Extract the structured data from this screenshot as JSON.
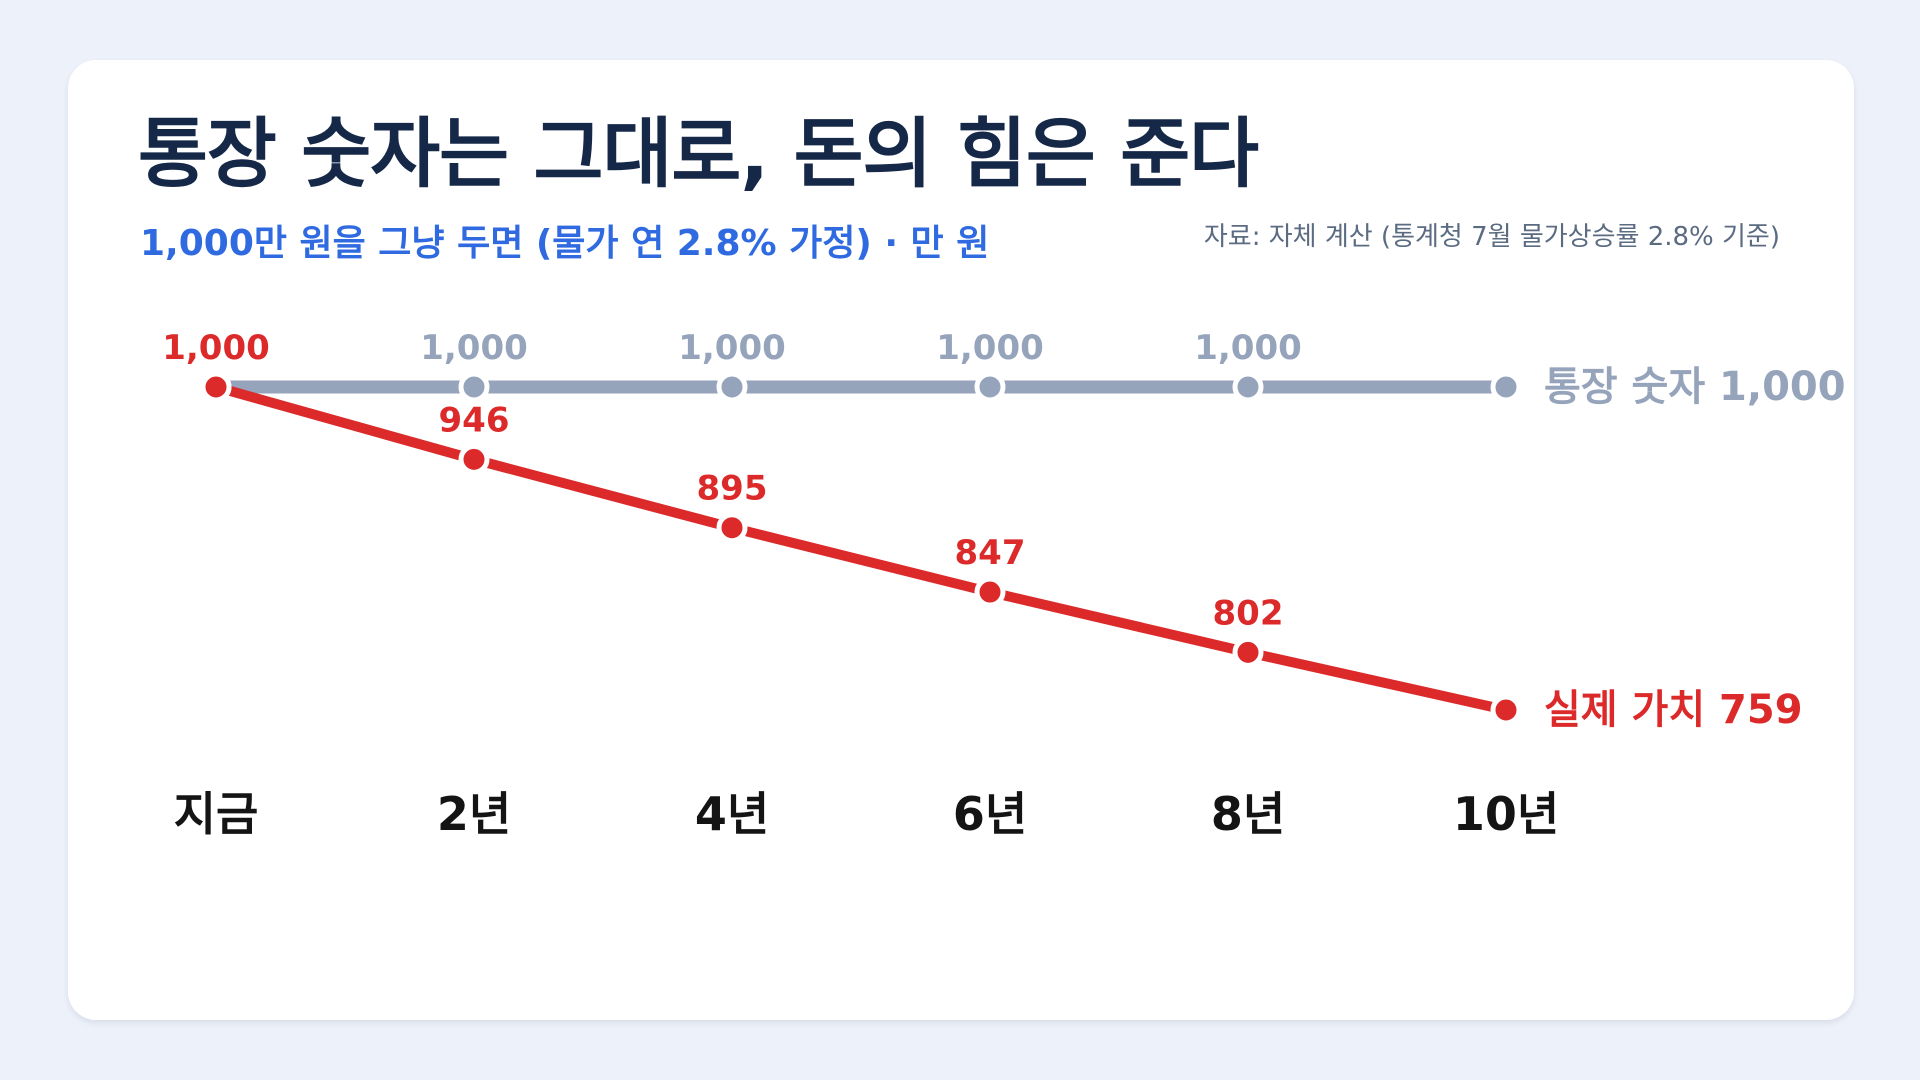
{
  "title": "통장 숫자는 그대로, 돈의 힘은 준다",
  "subtitle": "1,000만 원을 그냥 두면 (물가 연 2.8% 가정) · 만 원",
  "source": "자료: 자체 계산 (통계청 7월 물가상승률 2.8% 기준)",
  "chart_data": {
    "type": "line",
    "categories": [
      "지금",
      "2년",
      "4년",
      "6년",
      "8년",
      "10년"
    ],
    "ylim": [
      759,
      1000
    ],
    "grid": false,
    "series": [
      {
        "name": "통장 숫자",
        "color": "#95a3bb",
        "values": [
          1000,
          1000,
          1000,
          1000,
          1000,
          1000
        ],
        "labels": [
          "",
          "1,000",
          "1,000",
          "1,000",
          "1,000",
          ""
        ],
        "end_label": "통장 숫자 1,000"
      },
      {
        "name": "실제 가치",
        "color": "#dc2a2a",
        "values": [
          1000,
          946,
          895,
          847,
          802,
          759
        ],
        "labels": [
          "1,000",
          "946",
          "895",
          "847",
          "802",
          ""
        ],
        "end_label": "실제 가치 759"
      }
    ]
  },
  "colors": {
    "background": "#edf1f9",
    "card": "#ffffff",
    "title": "#152847",
    "subtitle": "#2f6ae0",
    "source": "#5b6b82"
  }
}
